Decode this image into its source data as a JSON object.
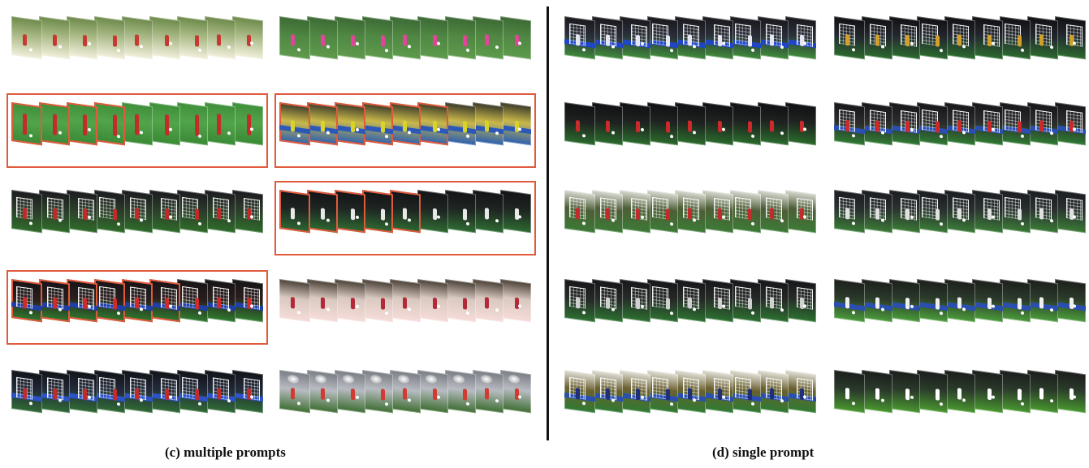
{
  "captions": {
    "left": "(c) multiple prompts",
    "right": "(d) single prompt"
  },
  "colors": {
    "highlight": "#e05a3c",
    "divider": "#111111"
  },
  "groups": [
    {
      "scene": "park-light",
      "highlighted": false,
      "red_frames": 0
    },
    {
      "scene": "green-legs",
      "highlighted": true,
      "red_frames": 4
    },
    {
      "scene": "dark-goal",
      "highlighted": false,
      "red_frames": 0
    },
    {
      "scene": "dark-red-goal",
      "highlighted": true,
      "red_frames": 6
    },
    {
      "scene": "night-stadium",
      "highlighted": false,
      "red_frames": 0
    },
    {
      "scene": "pink-field",
      "highlighted": false,
      "red_frames": 0
    },
    {
      "scene": "yellow-keeper",
      "highlighted": true,
      "red_frames": 6
    },
    {
      "scene": "night-kick",
      "highlighted": true,
      "red_frames": 5
    },
    {
      "scene": "pink-arena",
      "highlighted": false,
      "red_frames": 0
    },
    {
      "scene": "floodlights",
      "highlighted": false,
      "red_frames": 0
    },
    {
      "scene": "blue-banner",
      "highlighted": false,
      "red_frames": 0
    },
    {
      "scene": "night-red",
      "highlighted": false,
      "red_frames": 0
    },
    {
      "scene": "trees-goal",
      "highlighted": false,
      "red_frames": 0
    },
    {
      "scene": "dark-net",
      "highlighted": false,
      "red_frames": 0
    },
    {
      "scene": "trees-keeper",
      "highlighted": false,
      "red_frames": 0
    },
    {
      "scene": "night-blue-net",
      "highlighted": false,
      "red_frames": 0
    },
    {
      "scene": "night-net-red",
      "highlighted": false,
      "red_frames": 0
    },
    {
      "scene": "night-net-lights",
      "highlighted": false,
      "red_frames": 0
    },
    {
      "scene": "white-kit",
      "highlighted": false,
      "red_frames": 0
    },
    {
      "scene": "stadium-green",
      "highlighted": false,
      "red_frames": 0
    }
  ]
}
